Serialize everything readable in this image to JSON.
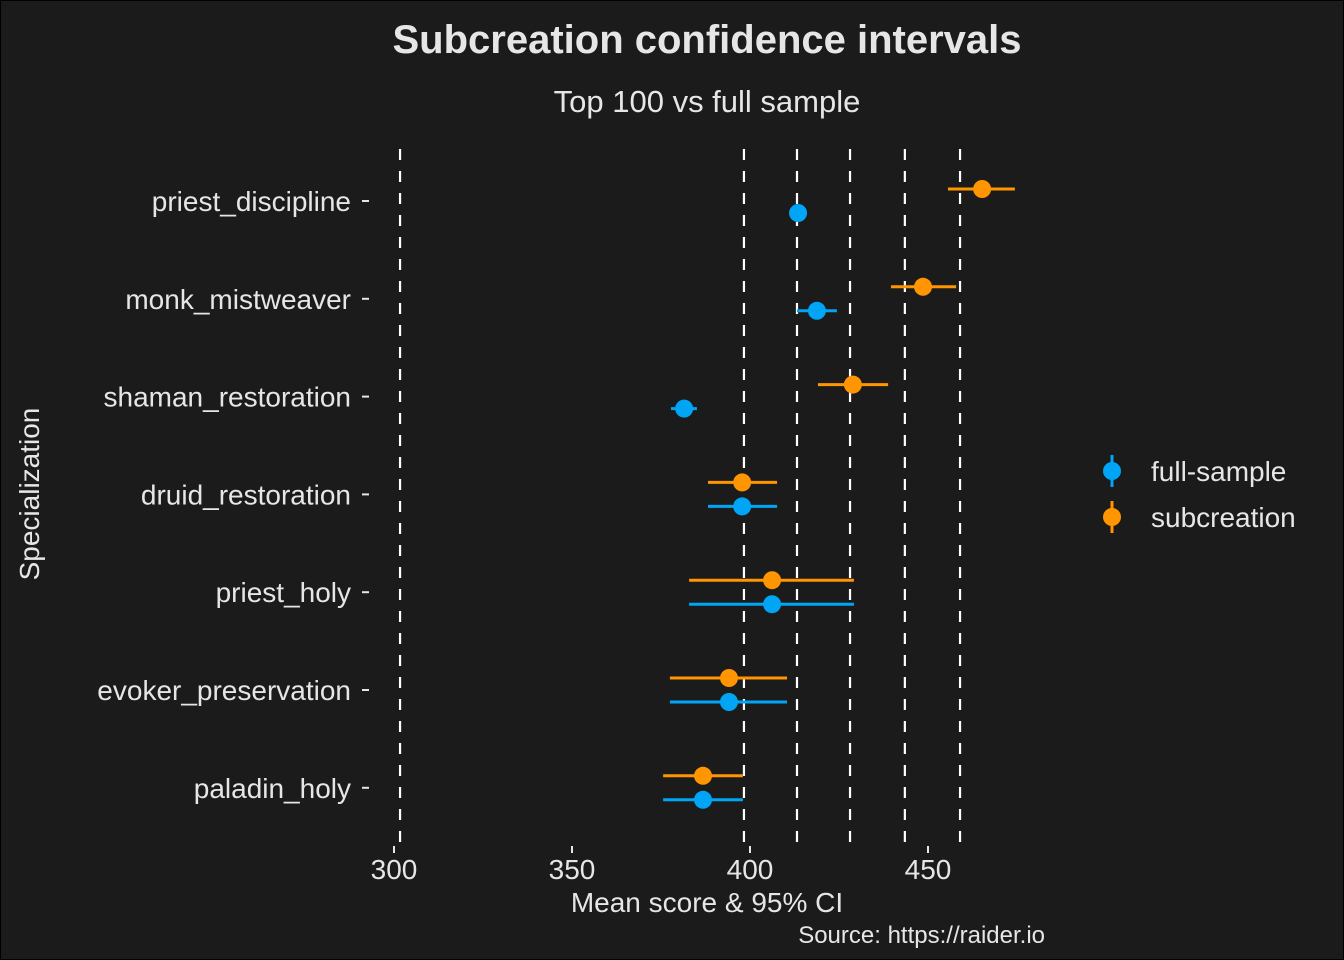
{
  "chart_data": {
    "type": "scatter",
    "subtype": "dot-and-errorbar",
    "title": "Subcreation confidence intervals",
    "subtitle": "Top 100 vs full sample",
    "xlabel": "Mean score & 95% CI",
    "ylabel": "Specialization",
    "caption": "Source: https://raider.io",
    "xlim": [
      286,
      478
    ],
    "xticks": [
      300,
      350,
      400,
      450
    ],
    "xtick_labels": [
      "300",
      "350",
      "400",
      "450"
    ],
    "reference_lines": [
      301.7,
      398.3,
      413.2,
      428.1,
      443.5,
      459.0
    ],
    "reference_line_style": "dashed",
    "categories": [
      "priest_discipline",
      "monk_mistweaver",
      "shaman_restoration",
      "druid_restoration",
      "priest_holy",
      "evoker_preservation",
      "paladin_holy"
    ],
    "series": [
      {
        "name": "full-sample",
        "color": "#00a5f5",
        "mean": [
          413.5,
          418.8,
          381.5,
          397.8,
          406.2,
          394.1,
          386.8
        ],
        "lower": [
          413.0,
          413.2,
          377.8,
          388.2,
          382.9,
          377.5,
          375.6
        ],
        "upper": [
          414.0,
          424.4,
          385.1,
          407.6,
          429.2,
          410.4,
          398.0
        ]
      },
      {
        "name": "subcreation",
        "color": "#ff9500",
        "mean": [
          465.2,
          448.6,
          428.9,
          397.8,
          406.2,
          394.1,
          386.8
        ],
        "lower": [
          455.6,
          439.6,
          419.1,
          388.2,
          382.9,
          377.5,
          375.6
        ],
        "upper": [
          474.4,
          457.9,
          438.8,
          407.6,
          429.2,
          410.4,
          398.0
        ]
      }
    ],
    "legend": {
      "position": "right",
      "entries": [
        "full-sample",
        "subcreation"
      ]
    },
    "grid": false,
    "background": "#1b1b1b"
  }
}
